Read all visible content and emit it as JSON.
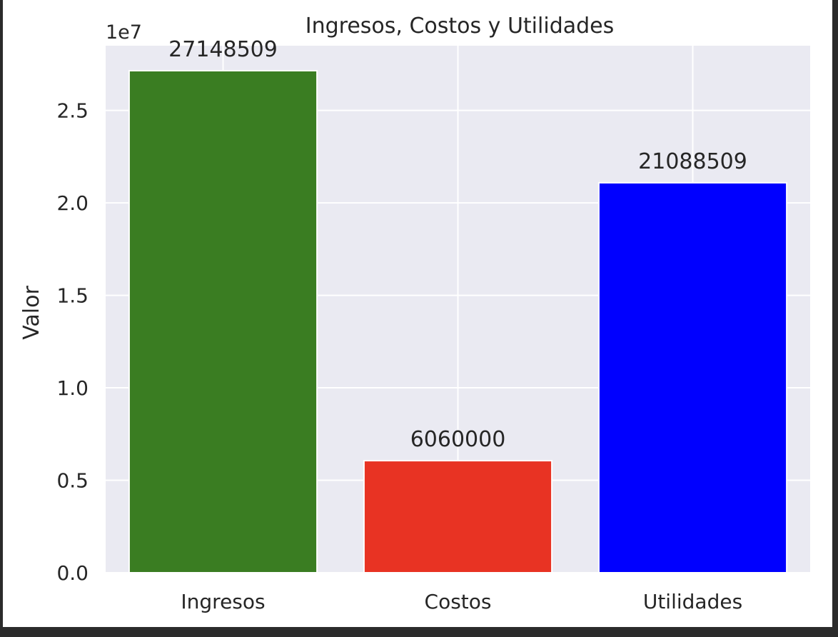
{
  "chart_data": {
    "type": "bar",
    "title": "Ingresos, Costos y Utilidades",
    "xlabel": "",
    "ylabel": "Valor",
    "offset_label": "1e7",
    "categories": [
      "Ingresos",
      "Costos",
      "Utilidades"
    ],
    "values": [
      27148509,
      6060000,
      21088509
    ],
    "value_labels": [
      "27148509",
      "6060000",
      "21088509"
    ],
    "colors": [
      "#3a7d22",
      "#e83323",
      "#0000ff"
    ],
    "ylim": [
      0,
      28500000
    ],
    "yticks": [
      0,
      5000000,
      10000000,
      15000000,
      20000000,
      25000000
    ],
    "ytick_labels": [
      "0.0",
      "0.5",
      "1.0",
      "1.5",
      "2.0",
      "2.5"
    ],
    "grid": true,
    "background": "#eaeaf2",
    "grid_color": "#ffffff"
  }
}
